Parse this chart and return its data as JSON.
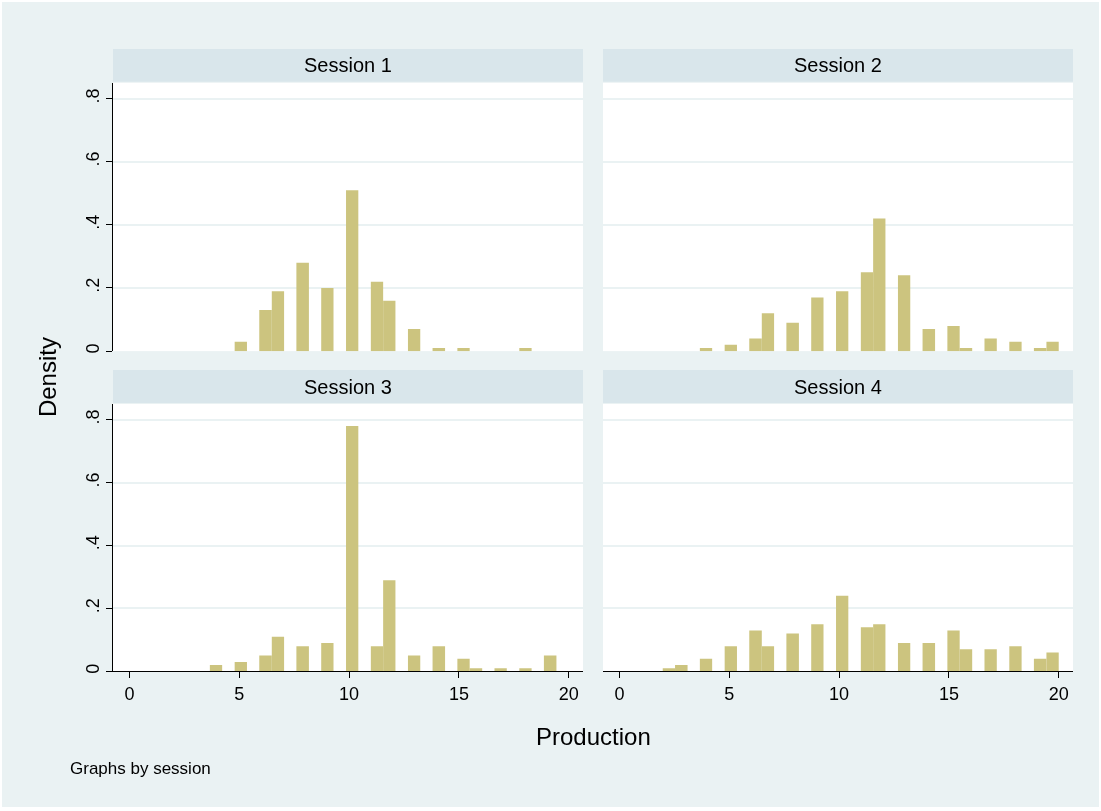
{
  "chart_data": [
    {
      "type": "histogram",
      "title": "Session 1",
      "ylabel": "Density",
      "color": "#ccc47f",
      "grid": "y",
      "tick_labels": "y",
      "xlim": [
        -0.75,
        20.65
      ],
      "ylim": [
        0,
        0.85
      ],
      "xticks": [
        0,
        5,
        10,
        15,
        20
      ],
      "yticks": [
        0,
        {
          "value": 0.2,
          "label": ".2"
        },
        {
          "value": 0.4,
          "label": ".4"
        },
        {
          "value": 0.6,
          "label": ".6"
        },
        {
          "value": 0.8,
          "label": ".8"
        }
      ],
      "bins": [
        0.28,
        0.84,
        1.41,
        1.97,
        2.53,
        3.1,
        3.66,
        4.22,
        4.79,
        5.35,
        5.91,
        6.48,
        7.04,
        7.6,
        8.17,
        8.73,
        9.29,
        9.86,
        10.42,
        10.99,
        11.55,
        12.11,
        12.68,
        13.24,
        13.8,
        14.37,
        14.93,
        15.49,
        16.06,
        16.62,
        17.18,
        17.75,
        18.31,
        18.87,
        19.44,
        20.0
      ],
      "values": [
        0,
        0,
        0,
        0,
        0,
        0,
        0,
        0,
        0.03,
        0,
        0.13,
        0.19,
        0,
        0.28,
        0,
        0.2,
        0,
        0.51,
        0,
        0.22,
        0.16,
        0,
        0.07,
        0,
        0.01,
        0,
        0.01,
        0,
        0,
        0,
        0,
        0.01,
        0,
        0,
        0
      ]
    },
    {
      "type": "histogram",
      "title": "Session 2",
      "color": "#ccc47f",
      "grid": "y",
      "tick_labels": false,
      "xlim": [
        -0.75,
        20.65
      ],
      "ylim": [
        0,
        0.85
      ],
      "xticks": [
        0,
        5,
        10,
        15,
        20
      ],
      "yticks": [
        0,
        0.2,
        0.4,
        0.6,
        0.8
      ],
      "bins": [
        0.28,
        0.84,
        1.41,
        1.97,
        2.53,
        3.1,
        3.66,
        4.22,
        4.79,
        5.35,
        5.91,
        6.48,
        7.04,
        7.6,
        8.17,
        8.73,
        9.29,
        9.86,
        10.42,
        10.99,
        11.55,
        12.11,
        12.68,
        13.24,
        13.8,
        14.37,
        14.93,
        15.49,
        16.06,
        16.62,
        17.18,
        17.75,
        18.31,
        18.87,
        19.44,
        20.0
      ],
      "values": [
        0,
        0,
        0,
        0,
        0,
        0,
        0.01,
        0,
        0.02,
        0,
        0.04,
        0.12,
        0,
        0.09,
        0,
        0.17,
        0,
        0.19,
        0,
        0.25,
        0.42,
        0,
        0.24,
        0,
        0.07,
        0,
        0.08,
        0.01,
        0,
        0.04,
        0,
        0.03,
        0,
        0.01,
        0.03
      ]
    },
    {
      "type": "histogram",
      "title": "Session 3",
      "xlabel": "Production",
      "color": "#ccc47f",
      "grid": "y",
      "xlim": [
        -0.75,
        20.65
      ],
      "ylim": [
        0,
        0.85
      ],
      "xticks": [
        0,
        5,
        10,
        15,
        20
      ],
      "yticks": [
        0,
        {
          "value": 0.2,
          "label": ".2"
        },
        {
          "value": 0.4,
          "label": ".4"
        },
        {
          "value": 0.6,
          "label": ".6"
        },
        {
          "value": 0.8,
          "label": ".8"
        }
      ],
      "annotations": [
        "Graphs by session"
      ],
      "bins": [
        0.28,
        0.84,
        1.41,
        1.97,
        2.53,
        3.1,
        3.66,
        4.22,
        4.79,
        5.35,
        5.91,
        6.48,
        7.04,
        7.6,
        8.17,
        8.73,
        9.29,
        9.86,
        10.42,
        10.99,
        11.55,
        12.11,
        12.68,
        13.24,
        13.8,
        14.37,
        14.93,
        15.49,
        16.06,
        16.62,
        17.18,
        17.75,
        18.31,
        18.87,
        19.44,
        20.0
      ],
      "values": [
        0,
        0,
        0,
        0,
        0,
        0,
        0.02,
        0,
        0.03,
        0,
        0.05,
        0.11,
        0,
        0.08,
        0,
        0.09,
        0,
        0.78,
        0,
        0.08,
        0.29,
        0,
        0.05,
        0,
        0.08,
        0,
        0.04,
        0.01,
        0,
        0.01,
        0,
        0.01,
        0,
        0.05,
        0
      ]
    },
    {
      "type": "histogram",
      "title": "Session 4",
      "color": "#ccc47f",
      "grid": "y",
      "tick_labels": "x",
      "xlim": [
        -0.75,
        20.65
      ],
      "ylim": [
        0,
        0.85
      ],
      "xticks": [
        0,
        5,
        10,
        15,
        20
      ],
      "yticks": [
        0,
        0.2,
        0.4,
        0.6,
        0.8
      ],
      "bins": [
        0.28,
        0.84,
        1.41,
        1.97,
        2.53,
        3.1,
        3.66,
        4.22,
        4.79,
        5.35,
        5.91,
        6.48,
        7.04,
        7.6,
        8.17,
        8.73,
        9.29,
        9.86,
        10.42,
        10.99,
        11.55,
        12.11,
        12.68,
        13.24,
        13.8,
        14.37,
        14.93,
        15.49,
        16.06,
        16.62,
        17.18,
        17.75,
        18.31,
        18.87,
        19.44,
        20.0
      ],
      "values": [
        0,
        0,
        0,
        0.01,
        0.02,
        0,
        0.04,
        0,
        0.08,
        0,
        0.13,
        0.08,
        0,
        0.12,
        0,
        0.15,
        0,
        0.24,
        0,
        0.14,
        0.15,
        0,
        0.09,
        0,
        0.09,
        0,
        0.13,
        0.07,
        0,
        0.07,
        0,
        0.08,
        0,
        0.04,
        0.06
      ]
    }
  ]
}
